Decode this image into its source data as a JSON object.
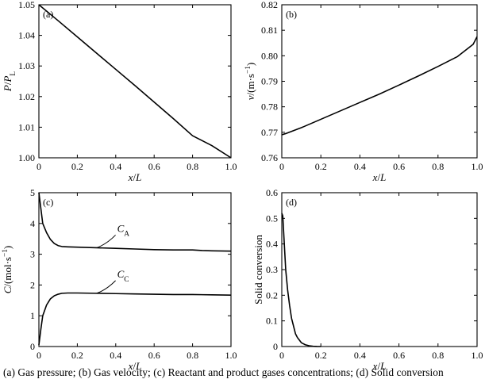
{
  "caption": "(a) Gas pressure; (b) Gas velocity; (c) Reactant and product gases concentrations; (d) Solid conversion",
  "chart_data": [
    {
      "type": "line",
      "panel_label": "(a)",
      "xlabel": "x/L",
      "ylabel": {
        "main": "P/P",
        "sub": "L"
      },
      "xlim": [
        0,
        1
      ],
      "ylim": [
        1.0,
        1.05
      ],
      "xticks": [
        "0",
        "0.2",
        "0.4",
        "0.6",
        "0.8",
        "1.0"
      ],
      "yticks": [
        "1.00",
        "1.01",
        "1.02",
        "1.03",
        "1.04",
        "1.05"
      ],
      "series": [
        {
          "x": [
            0,
            0.1,
            0.2,
            0.3,
            0.4,
            0.5,
            0.6,
            0.7,
            0.8,
            0.9,
            1.0
          ],
          "y": [
            1.05,
            1.0448,
            1.0395,
            1.0342,
            1.0289,
            1.0236,
            1.0182,
            1.0128,
            1.0072,
            1.004,
            1.0
          ]
        }
      ]
    },
    {
      "type": "line",
      "panel_label": "(b)",
      "xlabel": "x/L",
      "ylabel": {
        "main": "v/(m·s",
        "sup": "−1",
        "end": ")"
      },
      "xlim": [
        0,
        1
      ],
      "ylim": [
        0.76,
        0.82
      ],
      "xticks": [
        "0",
        "0.2",
        "0.4",
        "0.6",
        "0.8",
        "1.0"
      ],
      "yticks": [
        "0.76",
        "0.77",
        "0.78",
        "0.79",
        "0.80",
        "0.81",
        "0.82"
      ],
      "series": [
        {
          "x": [
            0,
            0.02,
            0.1,
            0.2,
            0.3,
            0.4,
            0.5,
            0.6,
            0.7,
            0.8,
            0.9,
            0.98,
            1.0
          ],
          "y": [
            0.769,
            0.7695,
            0.7718,
            0.7751,
            0.7784,
            0.7817,
            0.785,
            0.7885,
            0.7921,
            0.7958,
            0.7997,
            0.8045,
            0.8075
          ]
        }
      ]
    },
    {
      "type": "line",
      "panel_label": "(c)",
      "xlabel": "x/L",
      "ylabel": {
        "main": "C/(mol·s",
        "sup": "−1",
        "end": ")"
      },
      "xlim": [
        0,
        1
      ],
      "ylim": [
        0,
        5
      ],
      "xticks": [
        "0",
        "0.2",
        "0.4",
        "0.6",
        "0.8",
        "1.0"
      ],
      "yticks": [
        "0",
        "1",
        "2",
        "3",
        "4",
        "5"
      ],
      "series": [
        {
          "name": "C",
          "name_sub": "A",
          "x": [
            0,
            0.01,
            0.02,
            0.04,
            0.06,
            0.08,
            0.1,
            0.12,
            0.15,
            0.2,
            0.3,
            0.4,
            0.5,
            0.6,
            0.7,
            0.8,
            0.85,
            0.9,
            1.0
          ],
          "y": [
            5.0,
            4.5,
            4.0,
            3.7,
            3.48,
            3.35,
            3.28,
            3.25,
            3.24,
            3.23,
            3.21,
            3.19,
            3.17,
            3.15,
            3.14,
            3.14,
            3.12,
            3.11,
            3.1
          ]
        },
        {
          "name": "C",
          "name_sub": "C",
          "x": [
            0,
            0.01,
            0.02,
            0.04,
            0.06,
            0.08,
            0.1,
            0.12,
            0.15,
            0.2,
            0.3,
            0.4,
            0.5,
            0.6,
            0.7,
            0.8,
            0.9,
            1.0
          ],
          "y": [
            0.05,
            0.55,
            1.0,
            1.35,
            1.55,
            1.65,
            1.7,
            1.73,
            1.74,
            1.74,
            1.73,
            1.72,
            1.71,
            1.7,
            1.69,
            1.69,
            1.68,
            1.67
          ]
        }
      ],
      "annotations": [
        {
          "text": "C",
          "sub": "A",
          "at_x": 0.3,
          "at_y": 3.21
        },
        {
          "text": "C",
          "sub": "C",
          "at_x": 0.3,
          "at_y": 1.73
        }
      ]
    },
    {
      "type": "line",
      "panel_label": "(d)",
      "xlabel": "x/L",
      "ylabel": {
        "main": "Solid conversion"
      },
      "xlim": [
        0,
        1
      ],
      "ylim": [
        0,
        0.6
      ],
      "xticks": [
        "0",
        "0.2",
        "0.4",
        "0.6",
        "0.8",
        "1.0"
      ],
      "yticks": [
        "0",
        "0.1",
        "0.2",
        "0.3",
        "0.4",
        "0.5",
        "0.6"
      ],
      "series": [
        {
          "x": [
            0,
            0.005,
            0.01,
            0.02,
            0.03,
            0.04,
            0.05,
            0.06,
            0.07,
            0.08,
            0.09,
            0.1,
            0.12,
            0.14,
            0.16,
            0.18,
            0.2
          ],
          "y": [
            0.52,
            0.51,
            0.44,
            0.3,
            0.22,
            0.16,
            0.11,
            0.08,
            0.05,
            0.035,
            0.025,
            0.015,
            0.007,
            0.003,
            0.001,
            0.0003,
            0.0
          ]
        }
      ]
    }
  ]
}
